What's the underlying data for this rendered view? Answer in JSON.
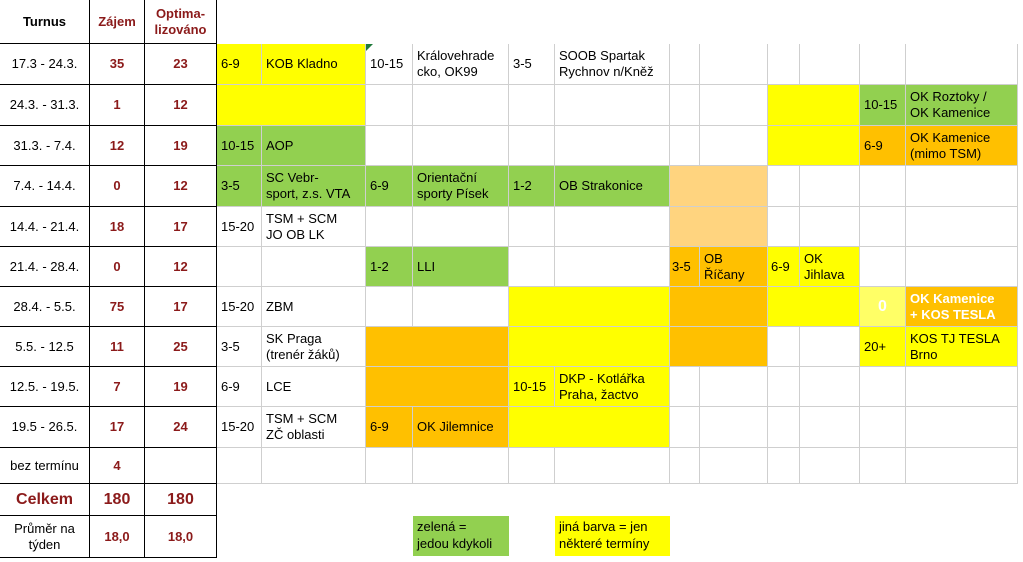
{
  "headers": {
    "turnus": "Turnus",
    "zajem": "Zájem",
    "optimalizovano_1": "Optima-",
    "optimalizovano_2": "lizováno"
  },
  "rows": [
    {
      "turnus": "17.3 - 24.3.",
      "zajem": "35",
      "opt": "23"
    },
    {
      "turnus": "24.3. - 31.3.",
      "zajem": "1",
      "opt": "12"
    },
    {
      "turnus": "31.3. - 7.4.",
      "zajem": "12",
      "opt": "19"
    },
    {
      "turnus": "7.4. - 14.4.",
      "zajem": "0",
      "opt": "12"
    },
    {
      "turnus": "14.4. - 21.4.",
      "zajem": "18",
      "opt": "17"
    },
    {
      "turnus": "21.4. - 28.4.",
      "zajem": "0",
      "opt": "12"
    },
    {
      "turnus": "28.4. - 5.5.",
      "zajem": "75",
      "opt": "17"
    },
    {
      "turnus": "5.5. - 12.5",
      "zajem": "11",
      "opt": "25"
    },
    {
      "turnus": "12.5. - 19.5.",
      "zajem": "7",
      "opt": "19"
    },
    {
      "turnus": "19.5 - 26.5.",
      "zajem": "17",
      "opt": "24"
    },
    {
      "turnus": "bez termínu",
      "zajem": "4",
      "opt": ""
    }
  ],
  "total": {
    "label": "Celkem",
    "zajem": "180",
    "opt": "180"
  },
  "average": {
    "label_1": "Průměr na",
    "label_2": "týden",
    "zajem": "18,0",
    "opt": "18,0"
  },
  "entries": {
    "r0a_n": "6-9",
    "r0a_t": "KOB Kladno",
    "r0b_n": "10-15",
    "r0b_t1": "Královehrade",
    "r0b_t2": "cko, OK99",
    "r0c_n": "3-5",
    "r0c_t1": "SOOB Spartak",
    "r0c_t2": "Rychnov n/Kněž",
    "r1f_n": "10-15",
    "r1f_t1": "OK Roztoky /",
    "r1f_t2": "OK Kamenice",
    "r2a_n": "10-15",
    "r2a_t": "AOP",
    "r2f_n": "6-9",
    "r2f_t1": "OK Kamenice",
    "r2f_t2": "(mimo TSM)",
    "r3a_n": "3-5",
    "r3a_t1": "SC Vebr-",
    "r3a_t2": "sport, z.s. VTA",
    "r3b_n": "6-9",
    "r3b_t1": "Orientační",
    "r3b_t2": "sporty Písek",
    "r3c_n": "1-2",
    "r3c_t": "OB Strakonice",
    "r4a_n": "15-20",
    "r4a_t1": "TSM + SCM",
    "r4a_t2": "JO OB LK",
    "r5b_n": "1-2",
    "r5b_t": "LLI",
    "r5d_n": "3-5",
    "r5d_t1": "OB",
    "r5d_t2": "Říčany",
    "r5e_n": "6-9",
    "r5e_t1": "OK",
    "r5e_t2": "Jihlava",
    "r6a_n": "15-20",
    "r6a_t": "ZBM",
    "r6f_n": "0",
    "r6f_t1": "OK Kamenice",
    "r6f_t2": "+ KOS TESLA",
    "r7a_n": "3-5",
    "r7a_t1": "SK Praga",
    "r7a_t2": "(trenér žáků)",
    "r7f_n": "20+",
    "r7f_t1": "KOS TJ TESLA",
    "r7f_t2": "Brno",
    "r8a_n": "6-9",
    "r8a_t": "LCE",
    "r8c_n": "10-15",
    "r8c_t1": "DKP - Kotlářka",
    "r8c_t2": "Praha, žactvo",
    "r9a_n": "15-20",
    "r9a_t1": "TSM + SCM",
    "r9a_t2": "ZČ oblasti",
    "r9b_n": "6-9",
    "r9b_t": "OK Jilemnice"
  },
  "legend": {
    "green_1": "zelená =",
    "green_2": "jedou kdykoli",
    "other_1": "jiná barva = jen",
    "other_2": "některé termíny"
  },
  "colors": {
    "green": "#92d050",
    "yellow": "#ffff00",
    "orange": "#ffc000",
    "peach": "#ffd47f",
    "header_red": "#8b1a1a"
  }
}
